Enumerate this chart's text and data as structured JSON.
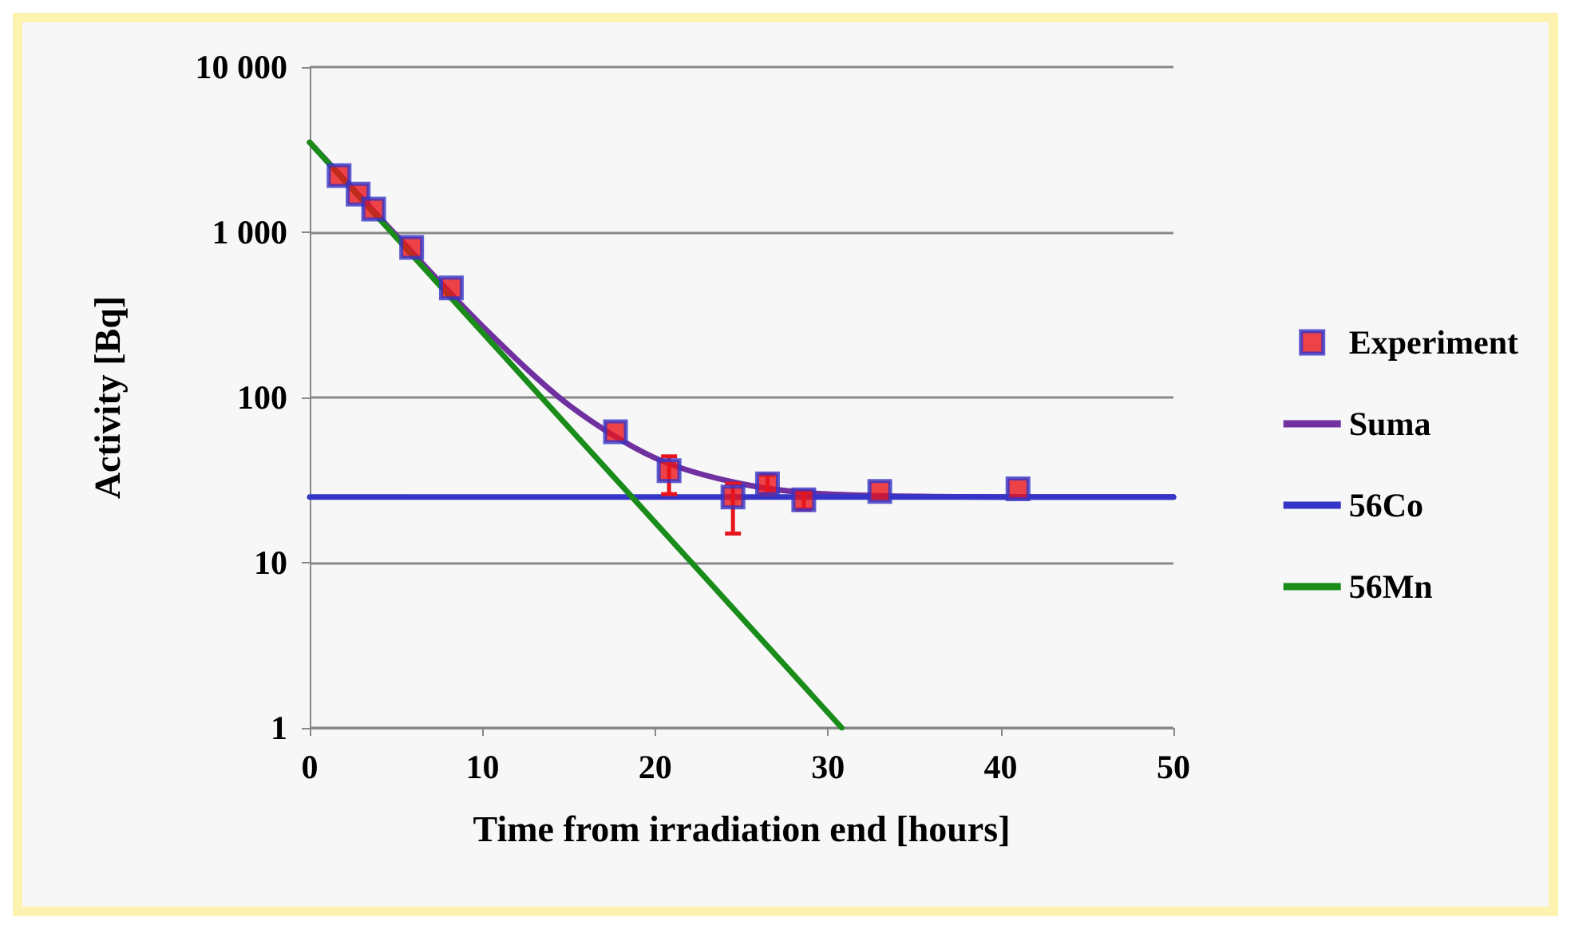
{
  "chart_data": {
    "type": "scatter",
    "xlabel": "Time from irradiation end [hours]",
    "ylabel": "Activity [Bq]",
    "log": "y",
    "grid": "y",
    "legend": "right",
    "xlim": [
      0,
      50
    ],
    "xticks": [
      0,
      10,
      20,
      30,
      40,
      50
    ],
    "ylim": [
      1,
      10000
    ],
    "yticks": [
      1,
      10,
      100,
      {
        "value": 1000,
        "label": "1 000"
      },
      {
        "value": 10000,
        "label": "10 000"
      }
    ],
    "series": [
      {
        "name": "Experiment",
        "marker": "square",
        "color": "#e8141c",
        "x": [
          1.7,
          2.8,
          3.7,
          5.9,
          8.2,
          17.7,
          20.8,
          24.5,
          26.5,
          28.6,
          33,
          41
        ],
        "values": [
          2200,
          1700,
          1380,
          810,
          460,
          62,
          36,
          25,
          30,
          24,
          27,
          28
        ],
        "errors": [
          null,
          null,
          null,
          null,
          null,
          null,
          [
            26,
            44
          ],
          [
            15,
            30
          ],
          [
            26,
            34
          ],
          [
            21,
            27
          ],
          null,
          null
        ]
      },
      {
        "name": "Suma",
        "type": "line",
        "marker": "none",
        "color": "#7030a0",
        "x": [
          0,
          5,
          10,
          15,
          20,
          25,
          30,
          40,
          50
        ],
        "values": [
          3500,
          960,
          270,
          90,
          43,
          30,
          26,
          25,
          25
        ]
      },
      {
        "name": "56Co",
        "type": "line",
        "marker": "none",
        "color": "#3535c8",
        "x": [
          0,
          50
        ],
        "values": [
          25,
          25
        ]
      },
      {
        "name": "56Mn",
        "type": "line",
        "marker": "none",
        "color": "#1a8c1a",
        "x": [
          0,
          30.8
        ],
        "values": [
          3500,
          1
        ]
      }
    ]
  }
}
